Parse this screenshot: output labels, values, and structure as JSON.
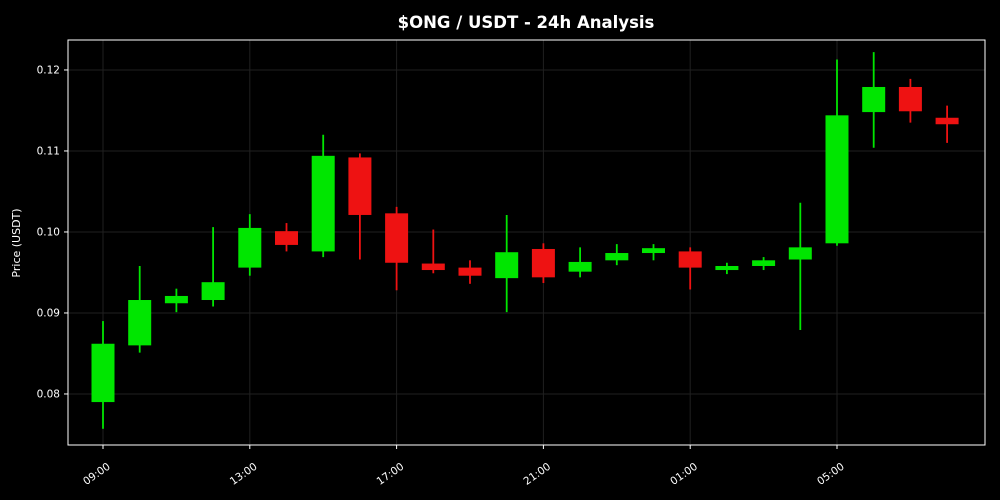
{
  "chart_data": {
    "type": "candlestick",
    "title": "$ONG / USDT - 24h Analysis",
    "ylabel": "Price (USDT)",
    "xlabel": "",
    "background_color": "#000000",
    "up_color": "#00e600",
    "down_color": "#ee1212",
    "grid_color": "#202020",
    "axis_color": "#ffffff",
    "text_color": "#ffffff",
    "grid": true,
    "legend": "none",
    "ylim": [
      0.0737,
      0.1237
    ],
    "yticks": [
      0.08,
      0.09,
      0.1,
      0.11,
      0.12
    ],
    "xticks": [
      {
        "index": 0,
        "label": "09:00"
      },
      {
        "index": 4,
        "label": "13:00"
      },
      {
        "index": 8,
        "label": "17:00"
      },
      {
        "index": 12,
        "label": "21:00"
      },
      {
        "index": 16,
        "label": "01:00"
      },
      {
        "index": 20,
        "label": "05:00"
      }
    ],
    "candles": [
      {
        "time": "09:00",
        "open": 0.079,
        "high": 0.089,
        "low": 0.0757,
        "close": 0.0862
      },
      {
        "time": "10:00",
        "open": 0.086,
        "high": 0.0958,
        "low": 0.0851,
        "close": 0.0916
      },
      {
        "time": "11:00",
        "open": 0.0912,
        "high": 0.093,
        "low": 0.0901,
        "close": 0.0921
      },
      {
        "time": "12:00",
        "open": 0.0916,
        "high": 0.1006,
        "low": 0.0908,
        "close": 0.0938
      },
      {
        "time": "13:00",
        "open": 0.0956,
        "high": 0.1022,
        "low": 0.0946,
        "close": 0.1005
      },
      {
        "time": "14:00",
        "open": 0.1001,
        "high": 0.1011,
        "low": 0.0976,
        "close": 0.0984
      },
      {
        "time": "15:00",
        "open": 0.0976,
        "high": 0.112,
        "low": 0.0969,
        "close": 0.1094
      },
      {
        "time": "16:00",
        "open": 0.1092,
        "high": 0.1097,
        "low": 0.0966,
        "close": 0.1021
      },
      {
        "time": "17:00",
        "open": 0.1023,
        "high": 0.1031,
        "low": 0.0928,
        "close": 0.0962
      },
      {
        "time": "18:00",
        "open": 0.0961,
        "high": 0.1003,
        "low": 0.0949,
        "close": 0.0953
      },
      {
        "time": "19:00",
        "open": 0.0956,
        "high": 0.0965,
        "low": 0.0936,
        "close": 0.0946
      },
      {
        "time": "20:00",
        "open": 0.0943,
        "high": 0.1021,
        "low": 0.0901,
        "close": 0.0975
      },
      {
        "time": "21:00",
        "open": 0.0979,
        "high": 0.0986,
        "low": 0.0937,
        "close": 0.0944
      },
      {
        "time": "22:00",
        "open": 0.0951,
        "high": 0.0981,
        "low": 0.0944,
        "close": 0.0963
      },
      {
        "time": "23:00",
        "open": 0.0965,
        "high": 0.0985,
        "low": 0.0959,
        "close": 0.0974
      },
      {
        "time": "00:00",
        "open": 0.0974,
        "high": 0.0985,
        "low": 0.0965,
        "close": 0.098
      },
      {
        "time": "01:00",
        "open": 0.0976,
        "high": 0.0981,
        "low": 0.0929,
        "close": 0.0956
      },
      {
        "time": "02:00",
        "open": 0.0953,
        "high": 0.0962,
        "low": 0.0948,
        "close": 0.0958
      },
      {
        "time": "03:00",
        "open": 0.0958,
        "high": 0.0969,
        "low": 0.0953,
        "close": 0.0965
      },
      {
        "time": "04:00",
        "open": 0.0966,
        "high": 0.1036,
        "low": 0.0879,
        "close": 0.0981
      },
      {
        "time": "05:00",
        "open": 0.0986,
        "high": 0.1213,
        "low": 0.0983,
        "close": 0.1144
      },
      {
        "time": "06:00",
        "open": 0.1148,
        "high": 0.1222,
        "low": 0.1104,
        "close": 0.1179
      },
      {
        "time": "07:00",
        "open": 0.1179,
        "high": 0.1189,
        "low": 0.1135,
        "close": 0.1149
      },
      {
        "time": "08:00",
        "open": 0.1141,
        "high": 0.1156,
        "low": 0.111,
        "close": 0.1133
      }
    ]
  }
}
